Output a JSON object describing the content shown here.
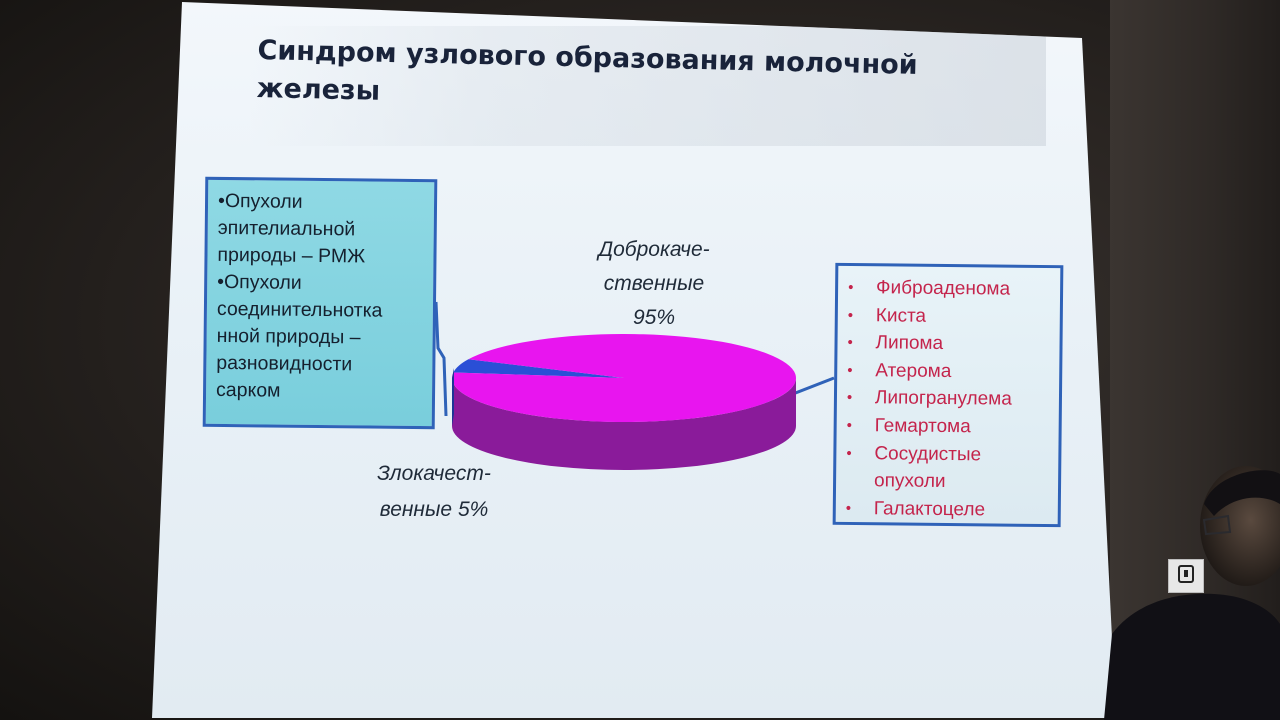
{
  "slide": {
    "title": "Синдром узлового образования молочной железы"
  },
  "left_box": {
    "items": [
      "•Опухоли\nэпителиальной\nприроды – РМЖ",
      "•Опухоли\nсоединительнотка\nнной природы –\nразновидности\nсарком"
    ]
  },
  "right_box": {
    "bullet": "•",
    "items": [
      "Фиброаденома",
      "Киста",
      "Липома",
      "Атерома",
      "Липогранулема",
      "Гемартома",
      "Сосудистые\nопухоли",
      "Галактоцеле"
    ]
  },
  "chart_data": {
    "type": "pie",
    "title": "",
    "slices": [
      {
        "label_lines": [
          "Доброкаче-",
          "ственные",
          "95%"
        ],
        "value": 95,
        "color": "#e815ef",
        "side_color": "#8a1b9a"
      },
      {
        "label_lines": [
          "Злокачест-",
          "венные 5%"
        ],
        "value": 5,
        "color": "#2a4fd6",
        "side_color": "#1d3596"
      }
    ],
    "legend": "none",
    "style": "3d"
  },
  "colors": {
    "title": "#19233a",
    "callout_border": "#2f62b8",
    "left_box_fill": "#86d5e1",
    "right_box_text": "#c4244c"
  },
  "icons": {
    "corner_logo": "mouse-logo-icon"
  }
}
